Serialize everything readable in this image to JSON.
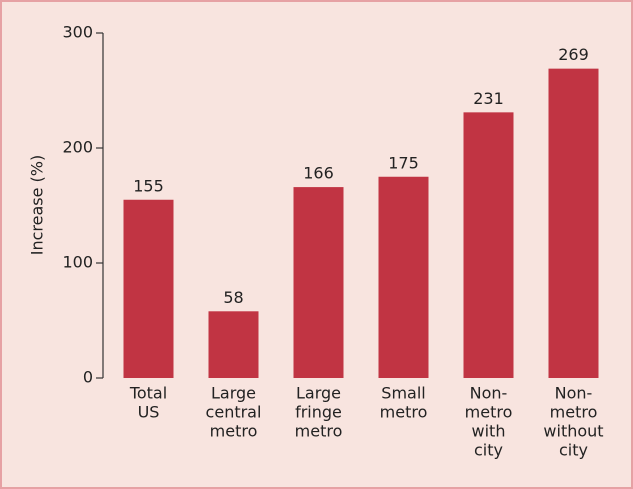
{
  "chart_data": {
    "type": "bar",
    "y_label": "Increase (%)",
    "categories": [
      [
        "Total",
        "US"
      ],
      [
        "Large",
        "central",
        "metro"
      ],
      [
        "Large",
        "fringe",
        "metro"
      ],
      [
        "Small",
        "metro"
      ],
      [
        "Non-",
        "metro",
        "with",
        "city"
      ],
      [
        "Non-",
        "metro",
        "without",
        "city"
      ]
    ],
    "values": [
      155,
      58,
      166,
      175,
      231,
      269
    ],
    "color": "#c13443",
    "ylim": [
      0,
      300
    ],
    "yticks": [
      0,
      100,
      200,
      300
    ],
    "grid": false
  }
}
